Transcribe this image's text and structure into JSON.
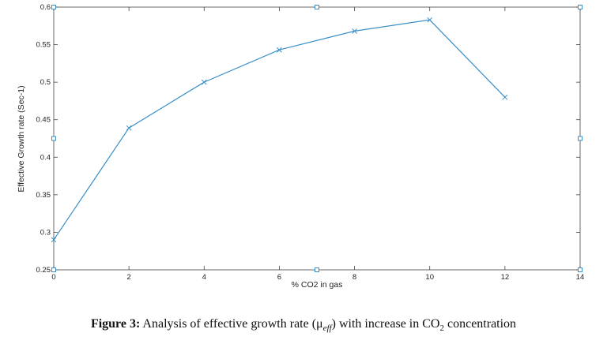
{
  "chart_data": {
    "type": "line",
    "title": "",
    "xlabel": "% CO2 in gas",
    "ylabel": "Effective Growth rate (Sec-1)",
    "xlim": [
      0,
      14
    ],
    "ylim": [
      0.25,
      0.6
    ],
    "xticks": [
      "0",
      "2",
      "4",
      "6",
      "8",
      "10",
      "12",
      "14"
    ],
    "yticks": [
      "0.25",
      "0.3",
      "0.35",
      "0.4",
      "0.45",
      "0.5",
      "0.55",
      "0.6"
    ],
    "grid": false,
    "series": [
      {
        "color": "#3a8fc9",
        "marker": "x",
        "x": [
          0,
          2,
          4,
          6,
          8,
          10,
          12
        ],
        "y": [
          0.29,
          0.439,
          0.5,
          0.543,
          0.568,
          0.583,
          0.48
        ]
      }
    ]
  },
  "caption": {
    "label": "Figure 3:",
    "text_before": " Analysis of effective growth rate (μ",
    "mu_subscript": "eff",
    "text_middle": ") with increase in CO",
    "co2_subscript": "2",
    "text_after": " concentration"
  }
}
